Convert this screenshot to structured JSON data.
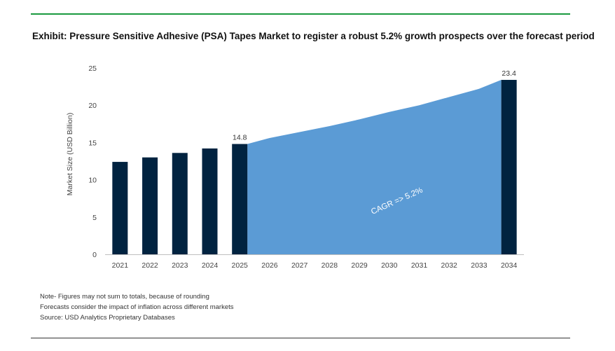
{
  "title": "Exhibit: Pressure Sensitive Adhesive (PSA) Tapes Market to register a robust 5.2% growth prospects over the forecast period",
  "notes": [
    "Note- Figures may not sum to totals, because of rounding",
    "Forecasts consider the impact of inflation across different markets",
    "Source: USD Analytics Proprietary Databases"
  ],
  "colors": {
    "bar": "#012340",
    "area": "#5b9bd5",
    "rule": "#1a9a3f"
  },
  "chart_data": {
    "type": "bar",
    "categories": [
      "2021",
      "2022",
      "2023",
      "2024",
      "2025",
      "2026",
      "2027",
      "2028",
      "2029",
      "2030",
      "2031",
      "2032",
      "2033",
      "2034"
    ],
    "bars": [
      {
        "category": "2021",
        "value": 12.4
      },
      {
        "category": "2022",
        "value": 13.0
      },
      {
        "category": "2023",
        "value": 13.6
      },
      {
        "category": "2024",
        "value": 14.2
      },
      {
        "category": "2025",
        "value": 14.8,
        "label": "14.8"
      },
      {
        "category": "2034",
        "value": 23.4,
        "label": "23.4"
      }
    ],
    "area": {
      "categories": [
        "2025",
        "2026",
        "2027",
        "2028",
        "2029",
        "2030",
        "2031",
        "2032",
        "2033",
        "2034"
      ],
      "values": [
        14.8,
        15.6,
        16.4,
        17.2,
        18.1,
        19.1,
        20.0,
        21.1,
        22.2,
        23.4
      ],
      "annotation": "CAGR => 5.2%"
    },
    "ylabel": "Market Size (USD Billion)",
    "xlabel": "",
    "ylim": [
      0,
      25
    ],
    "yticks": [
      "0",
      "5",
      "10",
      "15",
      "20",
      "25"
    ],
    "grid": false
  }
}
